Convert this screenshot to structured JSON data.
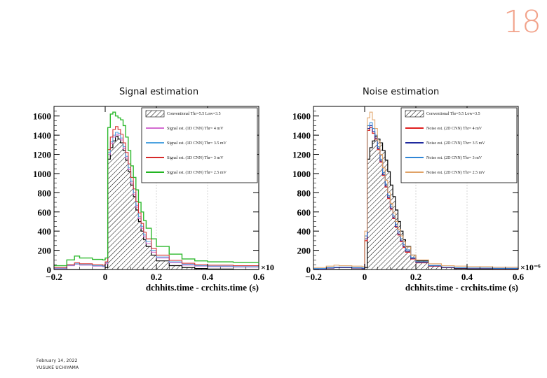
{
  "slide": {
    "page_number": "18",
    "footer_date": "February 14, 2022",
    "footer_author": "YUSUKE UCHIYAMA"
  },
  "chart_data": [
    {
      "type": "line",
      "title": "Signal estimation",
      "xlabel": "dchhits.time - crchits.time (s)",
      "ylabel": "",
      "xlim": [
        -0.2,
        0.6
      ],
      "ylim": [
        0,
        1700
      ],
      "x_ticks": [
        -0.2,
        0,
        0.2,
        0.4,
        0.6
      ],
      "x_tick_labels": [
        "−0.2",
        "0",
        "0.2",
        "0.4",
        "0.6"
      ],
      "y_ticks": [
        0,
        200,
        400,
        600,
        800,
        1000,
        1200,
        1400,
        1600
      ],
      "x_exponent_label": "×10",
      "legend_placement": "top-right",
      "x": [
        -0.2,
        -0.15,
        -0.12,
        -0.1,
        -0.05,
        -0.01,
        0.0,
        0.01,
        0.02,
        0.03,
        0.04,
        0.05,
        0.06,
        0.07,
        0.08,
        0.09,
        0.1,
        0.11,
        0.12,
        0.13,
        0.14,
        0.15,
        0.16,
        0.18,
        0.2,
        0.25,
        0.3,
        0.35,
        0.4,
        0.5,
        0.6
      ],
      "series": [
        {
          "name": "Conventional Thr=5.5 Low=3.5",
          "color": "#000000",
          "style": "hatched",
          "values": [
            0,
            0,
            0,
            0,
            0,
            0,
            20,
            1150,
            1270,
            1340,
            1390,
            1360,
            1320,
            1240,
            1140,
            1020,
            880,
            760,
            620,
            500,
            400,
            310,
            240,
            150,
            90,
            40,
            20,
            10,
            5,
            0,
            0
          ]
        },
        {
          "name": "Signal est. (1D CNN) Thr= 4 mV",
          "color": "#d36bd1",
          "values": [
            10,
            40,
            55,
            45,
            35,
            30,
            60,
            1200,
            1310,
            1380,
            1410,
            1400,
            1350,
            1260,
            1160,
            1040,
            900,
            780,
            650,
            530,
            430,
            340,
            270,
            180,
            120,
            70,
            45,
            35,
            30,
            25,
            20
          ]
        },
        {
          "name": "Signal est. (1D CNN) Thr= 3.5 mV",
          "color": "#4da3e0",
          "values": [
            15,
            45,
            60,
            50,
            40,
            35,
            70,
            1220,
            1330,
            1400,
            1430,
            1420,
            1370,
            1280,
            1180,
            1060,
            920,
            800,
            670,
            550,
            450,
            360,
            290,
            200,
            130,
            80,
            55,
            40,
            35,
            30,
            25
          ]
        },
        {
          "name": "Signal est. (1D CNN) Thr= 3 mV",
          "color": "#d62a2a",
          "values": [
            20,
            50,
            70,
            60,
            50,
            45,
            80,
            1250,
            1380,
            1460,
            1490,
            1460,
            1410,
            1320,
            1220,
            1100,
            960,
            840,
            710,
            590,
            480,
            390,
            320,
            220,
            150,
            95,
            65,
            50,
            45,
            40,
            35
          ]
        },
        {
          "name": "Signal est. (1D CNN) Thr= 2.5 mV",
          "color": "#22b522",
          "values": [
            40,
            100,
            140,
            120,
            105,
            100,
            120,
            1480,
            1620,
            1640,
            1600,
            1580,
            1560,
            1500,
            1380,
            1240,
            1080,
            960,
            830,
            700,
            600,
            510,
            430,
            320,
            240,
            160,
            110,
            90,
            80,
            75,
            70
          ]
        }
      ]
    },
    {
      "type": "line",
      "title": "Noise estimation",
      "xlabel": "dchhits.time - crchits.time (s)",
      "ylabel": "",
      "xlim": [
        -0.2,
        0.6
      ],
      "ylim": [
        0,
        1700
      ],
      "x_ticks": [
        -0.2,
        0,
        0.2,
        0.4,
        0.6
      ],
      "x_tick_labels": [
        "−0.2",
        "0",
        "0.2",
        "0.4",
        "0.6"
      ],
      "y_ticks": [
        0,
        200,
        400,
        600,
        800,
        1000,
        1200,
        1400,
        1600
      ],
      "x_exponent_label": "×10⁻⁶",
      "legend_placement": "top-right",
      "x": [
        -0.2,
        -0.15,
        -0.12,
        -0.1,
        -0.05,
        -0.01,
        0.0,
        0.01,
        0.02,
        0.03,
        0.04,
        0.05,
        0.06,
        0.07,
        0.08,
        0.09,
        0.1,
        0.11,
        0.12,
        0.13,
        0.14,
        0.15,
        0.16,
        0.18,
        0.2,
        0.25,
        0.3,
        0.35,
        0.4,
        0.5,
        0.6
      ],
      "series": [
        {
          "name": "Conventional Thr=5.5 Low=3.5",
          "color": "#000000",
          "style": "hatched",
          "values": [
            0,
            0,
            0,
            0,
            0,
            0,
            20,
            1150,
            1270,
            1340,
            1390,
            1360,
            1320,
            1240,
            1140,
            1020,
            880,
            760,
            620,
            500,
            400,
            310,
            240,
            150,
            90,
            40,
            20,
            10,
            5,
            0,
            0
          ]
        },
        {
          "name": "Noise est. (2D CNN) Thr= 4 mV",
          "color": "#e01f1f",
          "values": [
            5,
            15,
            20,
            20,
            15,
            10,
            300,
            1450,
            1480,
            1420,
            1360,
            1250,
            1120,
            980,
            860,
            740,
            630,
            530,
            440,
            360,
            290,
            230,
            180,
            110,
            70,
            35,
            20,
            15,
            12,
            10,
            8
          ]
        },
        {
          "name": "Noise est. (2D CNN) Thr= 3.5 mV",
          "color": "#1f2a9e",
          "values": [
            5,
            15,
            20,
            20,
            15,
            10,
            320,
            1470,
            1500,
            1440,
            1370,
            1260,
            1130,
            990,
            870,
            750,
            640,
            540,
            450,
            370,
            300,
            240,
            190,
            115,
            75,
            38,
            22,
            16,
            13,
            10,
            8
          ]
        },
        {
          "name": "Noise est. (2D CNN) Thr= 3 mV",
          "color": "#2f86d6",
          "values": [
            10,
            20,
            25,
            25,
            20,
            15,
            350,
            1500,
            1530,
            1470,
            1400,
            1280,
            1150,
            1010,
            890,
            770,
            660,
            560,
            470,
            390,
            320,
            260,
            205,
            125,
            80,
            42,
            25,
            18,
            15,
            12,
            10
          ]
        },
        {
          "name": "Noise est. (2D CNN) Thr= 2.5 mV",
          "color": "#e0a266",
          "values": [
            20,
            35,
            45,
            40,
            35,
            30,
            400,
            1580,
            1640,
            1560,
            1470,
            1340,
            1200,
            1060,
            930,
            800,
            690,
            590,
            500,
            420,
            350,
            290,
            235,
            150,
            100,
            60,
            40,
            35,
            30,
            25,
            20
          ]
        }
      ]
    }
  ]
}
